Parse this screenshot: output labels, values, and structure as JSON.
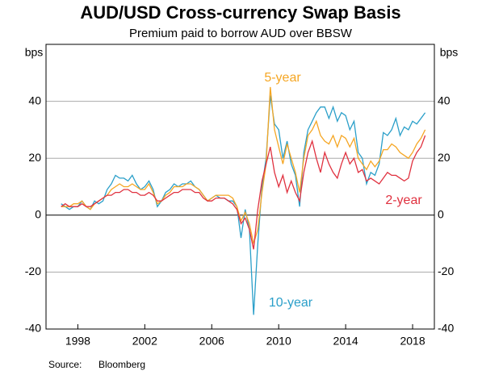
{
  "chart_data": {
    "type": "line",
    "title": "AUD/USD Cross-currency Swap Basis",
    "subtitle": "Premium paid to borrow AUD over BBSW",
    "y_label": "bps",
    "source_label": "Source:",
    "source": "Bloomberg",
    "x": [
      1997,
      1997.25,
      1997.5,
      1997.75,
      1998,
      1998.25,
      1998.5,
      1998.75,
      1999,
      1999.25,
      1999.5,
      1999.75,
      2000,
      2000.25,
      2000.5,
      2000.75,
      2001,
      2001.25,
      2001.5,
      2001.75,
      2002,
      2002.25,
      2002.5,
      2002.75,
      2003,
      2003.25,
      2003.5,
      2003.75,
      2004,
      2004.25,
      2004.5,
      2004.75,
      2005,
      2005.25,
      2005.5,
      2005.75,
      2006,
      2006.25,
      2006.5,
      2006.75,
      2007,
      2007.25,
      2007.5,
      2007.75,
      2008,
      2008.25,
      2008.5,
      2008.75,
      2009,
      2009.25,
      2009.5,
      2009.75,
      2010,
      2010.25,
      2010.5,
      2010.75,
      2011,
      2011.25,
      2011.5,
      2011.75,
      2012,
      2012.25,
      2012.5,
      2012.75,
      2013,
      2013.25,
      2013.5,
      2013.75,
      2014,
      2014.25,
      2014.5,
      2014.75,
      2015,
      2015.25,
      2015.5,
      2015.75,
      2016,
      2016.25,
      2016.5,
      2016.75,
      2017,
      2017.25,
      2017.5,
      2017.75,
      2018,
      2018.25,
      2018.5,
      2018.75
    ],
    "series": [
      {
        "name": "10-year",
        "color": "#2a9fc9",
        "values": [
          4,
          3,
          2,
          3,
          3,
          5,
          3,
          2,
          5,
          4,
          5,
          9,
          11,
          14,
          13,
          13,
          12,
          14,
          11,
          9,
          10,
          12,
          9,
          3,
          5,
          8,
          9,
          11,
          10,
          11,
          11,
          12,
          10,
          9,
          7,
          5,
          6,
          7,
          6,
          6,
          5,
          5,
          3,
          -8,
          2,
          -5,
          -35,
          -10,
          10,
          20,
          42,
          32,
          30,
          20,
          26,
          18,
          14,
          3,
          22,
          30,
          33,
          36,
          38,
          38,
          34,
          38,
          33,
          36,
          35,
          30,
          33,
          22,
          20,
          11,
          15,
          14,
          18,
          29,
          28,
          30,
          34,
          28,
          31,
          30,
          33,
          32,
          34,
          36
        ]
      },
      {
        "name": "5-year",
        "color": "#f5a623",
        "values": [
          3,
          3,
          3,
          4,
          4,
          5,
          3,
          2,
          4,
          5,
          6,
          7,
          9,
          10,
          11,
          10,
          10,
          11,
          10,
          9,
          9,
          11,
          8,
          4,
          5,
          7,
          8,
          10,
          10,
          10,
          11,
          11,
          10,
          9,
          7,
          5,
          6,
          7,
          7,
          7,
          7,
          6,
          3,
          -2,
          1,
          -3,
          -10,
          -5,
          8,
          18,
          45,
          30,
          24,
          18,
          25,
          20,
          15,
          8,
          20,
          28,
          30,
          33,
          28,
          26,
          25,
          28,
          24,
          28,
          27,
          24,
          27,
          20,
          18,
          16,
          19,
          17,
          19,
          23,
          23,
          25,
          24,
          22,
          21,
          20,
          22,
          25,
          27,
          30
        ]
      },
      {
        "name": "2-year",
        "color": "#e0313f",
        "values": [
          3,
          4,
          3,
          3,
          3,
          4,
          3,
          3,
          4,
          5,
          6,
          7,
          7,
          8,
          8,
          9,
          9,
          8,
          8,
          7,
          7,
          8,
          7,
          5,
          5,
          6,
          7,
          8,
          8,
          9,
          9,
          9,
          8,
          8,
          6,
          5,
          5,
          6,
          6,
          6,
          5,
          4,
          2,
          -3,
          -1,
          -5,
          -12,
          2,
          12,
          18,
          24,
          15,
          10,
          14,
          8,
          12,
          8,
          5,
          15,
          22,
          26,
          20,
          15,
          22,
          18,
          15,
          13,
          18,
          22,
          18,
          20,
          15,
          16,
          12,
          13,
          12,
          11,
          13,
          15,
          14,
          14,
          13,
          12,
          13,
          19,
          22,
          24,
          28
        ]
      }
    ],
    "xlim": [
      1996.1,
      2019.3
    ],
    "xticks": [
      1998,
      2002,
      2006,
      2010,
      2014,
      2018
    ],
    "ylim": [
      -40,
      60
    ],
    "yticks": [
      -40,
      -20,
      0,
      20,
      40
    ],
    "grid": true
  }
}
